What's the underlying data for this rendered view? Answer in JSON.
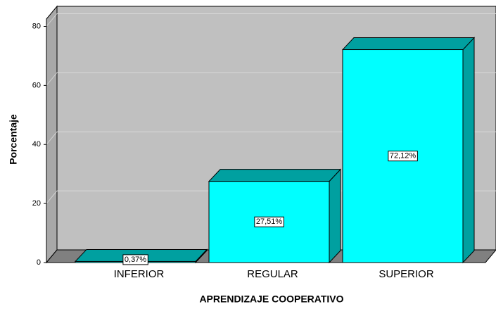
{
  "chart_data": {
    "type": "bar3d",
    "x_label": "APRENDIZAJE COOPERATIVO",
    "y_label": "Porcentaje",
    "categories": [
      "INFERIOR",
      "REGULAR",
      "SUPERIOR"
    ],
    "values": [
      0.37,
      27.51,
      72.12
    ],
    "value_labels": [
      "0,37%",
      "27,51%",
      "72,12%"
    ],
    "color": "#00ffff",
    "ylim": [
      0,
      82.5
    ],
    "yticks": [
      0,
      20,
      40,
      60,
      80
    ],
    "grid": true
  }
}
